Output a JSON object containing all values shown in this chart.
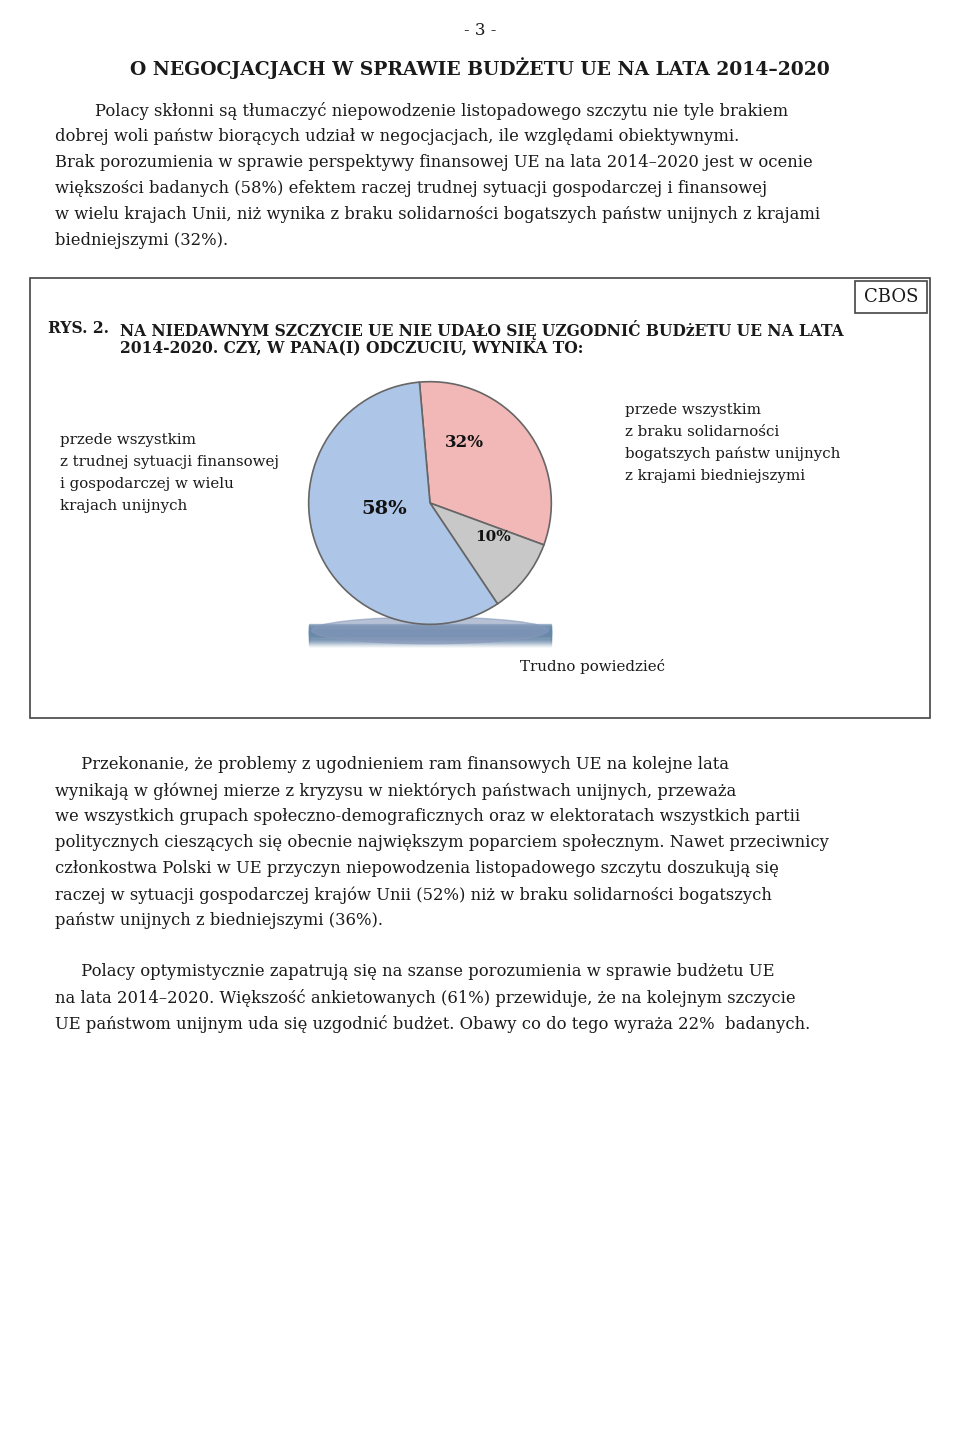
{
  "page_number": "- 3 -",
  "main_title": "O NEGOCJACJACH W SPRAWIE BUDŻETU UE NA LATA 2014–2020",
  "para1_lines": [
    "Polacy skłonni są tłumaczyć niepowodzenie listopadowego szczytu nie tyle brakiem",
    "dobrej woli państw biorących udział w negocjacjach, ile względami obiektywnymi.",
    "Brak porozumienia w sprawie perspektywy finansowej UE na lata 2014–2020 jest w ocenie",
    "większości badanych (58%) efektem raczej trudnej sytuacji gospodarczej i finansowej",
    "w wielu krajach Unii, niż wynika z braku solidarności bogatszych państw unijnych z krajami",
    "biedniejszymi (32%)."
  ],
  "para1_indent": true,
  "box_label": "CBOS",
  "fig_label": "RYS. 2.",
  "fig_title_line1": "NA NIEDAWNYM SZCZYCIE UE NIE UDAŁO SIĘ UZGODNIĆ BUDżETU UE NA LATA",
  "fig_title_line2": "2014-2020. CZY, W PANA(I) ODCZUCIU, WYNIKA TO:",
  "pie_values": [
    32,
    10,
    58
  ],
  "pie_colors": [
    "#f2b8b8",
    "#c8c8c8",
    "#adc6e8"
  ],
  "pie_edge_color": "#555555",
  "label_58": "58%",
  "label_32": "32%",
  "label_10": "10%",
  "label_left_text": "przede wszystkim\nz trudnej sytuacji finansowej\ni gospodarczej w wielu\nkrajach unijnych",
  "label_right_text": "przede wszystkim\nz braku solidarności\nbogatszych państw unijnych\nz krajami biedniejszymi",
  "label_bottom_text": "Trudno powiedzieć",
  "para2_lines": [
    "     Przekonanie, że problemy z ugodnieniem ram finansowych UE na kolejne lata",
    "wynikają w głównej mierze z kryzysu w niektórych państwach unijnych, przeważa",
    "we wszystkich grupach społeczno-demograficznych oraz w elektoratach wszystkich partii",
    "politycznych cieszących się obecnie największym poparciem społecznym. Nawet przeciwnicy",
    "członkostwa Polski w UE przyczyn niepowodzenia listopadowego szczytu doszukują się",
    "raczej w sytuacji gospodarczej krajów Unii (52%) niż w braku solidarności bogatszych",
    "państw unijnych z biedniejszymi (36%)."
  ],
  "para3_lines": [
    "     Polacy optymistycznie zapatrują się na szanse porozumienia w sprawie budżetu UE",
    "na lata 2014–2020. Większość ankietowanych (61%) przewiduje, że na kolejnym szczycie",
    "UE państwom unijnym uda się uzgodnić budżet. Obawy co do tego wyraża 22%  badanych."
  ],
  "background_color": "#ffffff",
  "text_color": "#1a1a1a"
}
